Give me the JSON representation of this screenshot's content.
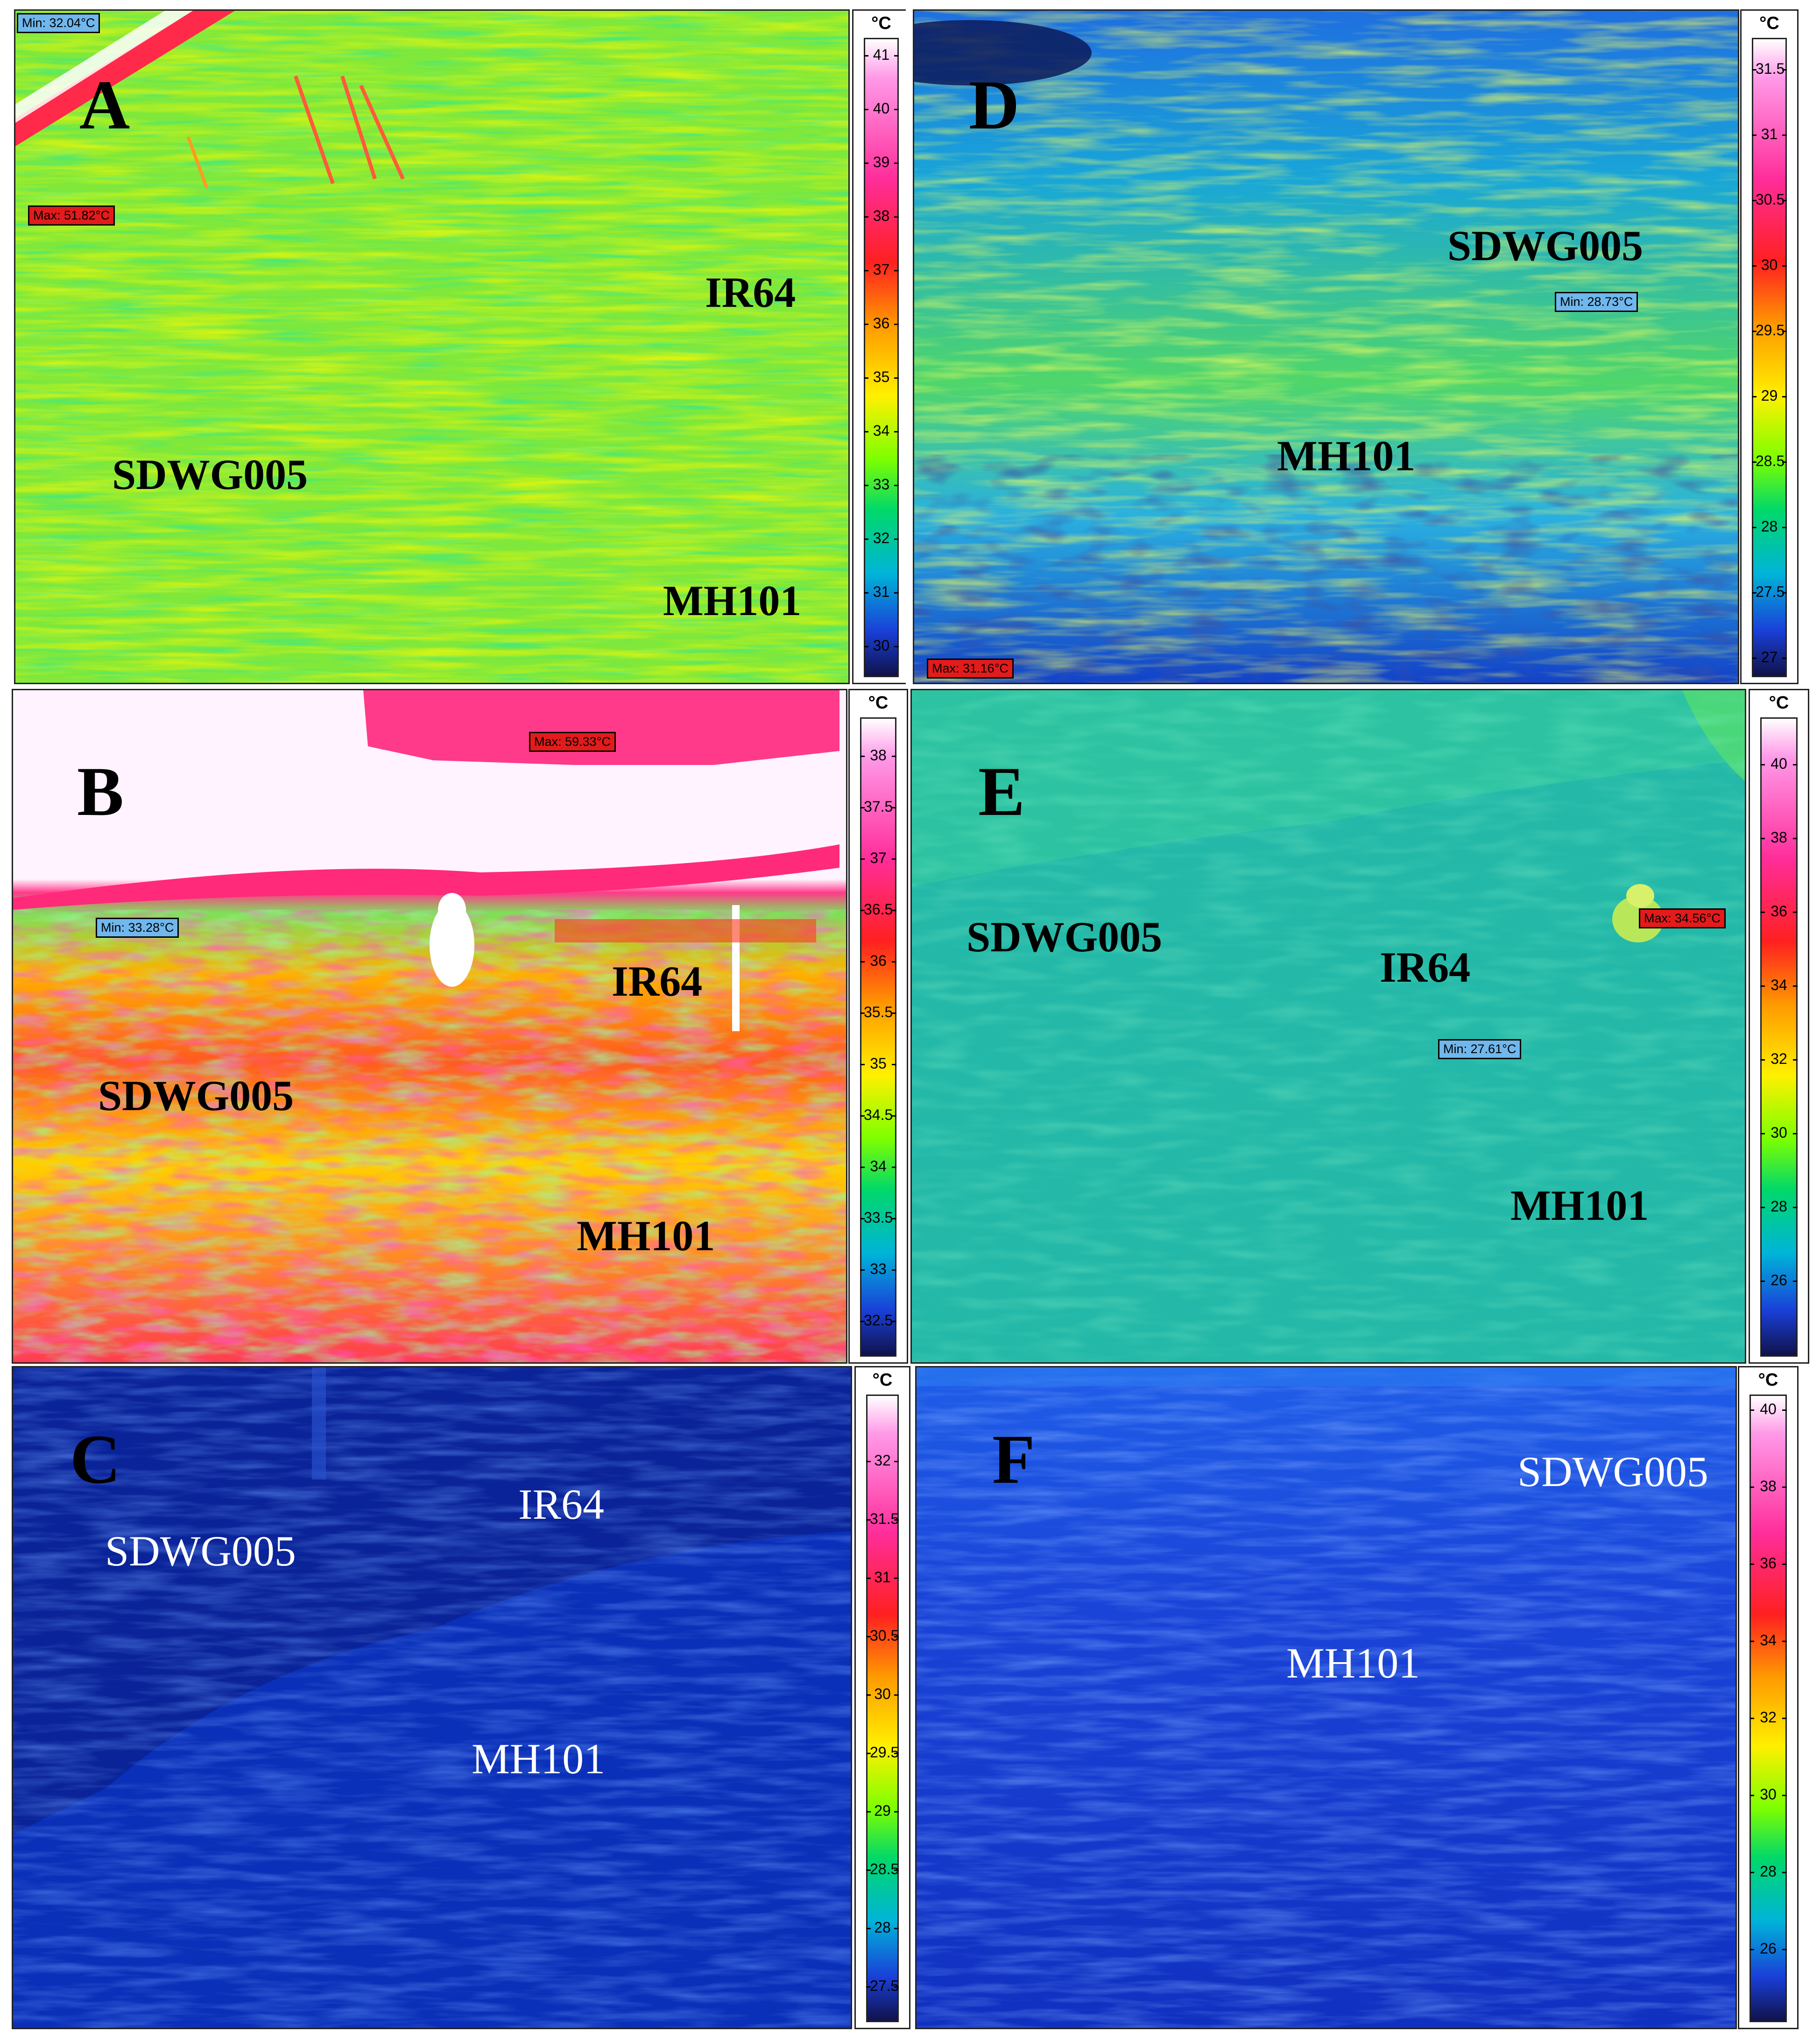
{
  "unit": "°C",
  "panels": {
    "A": {
      "letter": "A",
      "varieties": [
        "IR64",
        "SDWG005",
        "MH101"
      ],
      "min_tag": "Min: 32.04°C",
      "max_tag": "Max: 51.82°C",
      "scale": [
        "41",
        "40",
        "39",
        "38",
        "37",
        "36",
        "35",
        "34",
        "33",
        "32",
        "31",
        "30"
      ]
    },
    "B": {
      "letter": "B",
      "varieties": [
        "IR64",
        "SDWG005",
        "MH101"
      ],
      "min_tag": "Min: 33.28°C",
      "max_tag": "Max: 59.33°C",
      "scale": [
        "38",
        "37.5",
        "37",
        "36.5",
        "36",
        "35.5",
        "35",
        "34.5",
        "34",
        "33.5",
        "33",
        "32.5"
      ]
    },
    "C": {
      "letter": "C",
      "varieties": [
        "IR64",
        "SDWG005",
        "MH101"
      ],
      "scale": [
        "32",
        "31.5",
        "31",
        "30.5",
        "30",
        "29.5",
        "29",
        "28.5",
        "28",
        "27.5"
      ]
    },
    "D": {
      "letter": "D",
      "varieties": [
        "SDWG005",
        "MH101"
      ],
      "min_tag": "Min: 28.73°C",
      "max_tag": "Max: 31.16°C",
      "scale": [
        "31.5",
        "31",
        "30.5",
        "30",
        "29.5",
        "29",
        "28.5",
        "28",
        "27.5",
        "27"
      ]
    },
    "E": {
      "letter": "E",
      "varieties": [
        "SDWG005",
        "IR64",
        "MH101"
      ],
      "min_tag": "Min: 27.61°C",
      "max_tag": "Max: 34.56°C",
      "scale": [
        "40",
        "38",
        "36",
        "34",
        "32",
        "30",
        "28",
        "26"
      ]
    },
    "F": {
      "letter": "F",
      "varieties": [
        "SDWG005",
        "MH101"
      ],
      "scale": [
        "40",
        "38",
        "36",
        "34",
        "32",
        "30",
        "28",
        "26"
      ]
    }
  }
}
